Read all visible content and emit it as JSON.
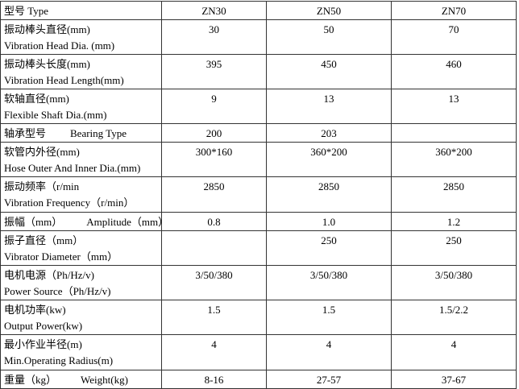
{
  "table": {
    "header": [
      "型号 Type",
      "ZN30",
      "ZN50",
      "ZN70"
    ],
    "rows": [
      {
        "cn": "振动棒头直径(mm)",
        "en": "Vibration Head Dia. (mm)",
        "values": [
          "30",
          "50",
          "70"
        ]
      },
      {
        "cn": "振动棒头长度(mm)",
        "en": "Vibration Head Length(mm)",
        "values": [
          "395",
          "450",
          "460"
        ]
      },
      {
        "cn": "软轴直径(mm)",
        "en": "Flexible Shaft Dia.(mm)",
        "values": [
          "9",
          "13",
          "13"
        ]
      },
      {
        "cn": "轴承型号",
        "en": "Bearing Type",
        "values": [
          "200",
          "203",
          null
        ]
      },
      {
        "cn": "软管内外径(mm)",
        "en": "Hose Outer And Inner Dia.(mm)",
        "values": [
          "300*160",
          "360*200",
          "360*200"
        ]
      },
      {
        "cn": "振动频率（r/min",
        "en": "Vibration Frequency（r/min）",
        "values": [
          "2850",
          "2850",
          "2850"
        ]
      },
      {
        "cn": "振幅（mm）",
        "en": "Amplitude（mm）",
        "values": [
          "0.8",
          "1.0",
          "1.2"
        ]
      },
      {
        "cn": "振子直径（mm）",
        "en": "Vibrator Diameter（mm）",
        "values": [
          null,
          "250",
          "250"
        ]
      },
      {
        "cn": "电机电源（Ph/Hz/v)",
        "en": "Power Source（Ph/Hz/v)",
        "values": [
          "3/50/380",
          "3/50/380",
          "3/50/380"
        ]
      },
      {
        "cn": "电机功率(kw)",
        "en": "Output Power(kw)",
        "values": [
          "1.5",
          "1.5",
          "1.5/2.2"
        ]
      },
      {
        "cn": "最小作业半径(m)",
        "en": "Min.Operating Radius(m)",
        "values": [
          "4",
          "4",
          "4"
        ]
      },
      {
        "cn": "重量（kg）",
        "en": "Weight(kg)",
        "values": [
          "8-16",
          "27-57",
          "37-67"
        ]
      }
    ]
  }
}
